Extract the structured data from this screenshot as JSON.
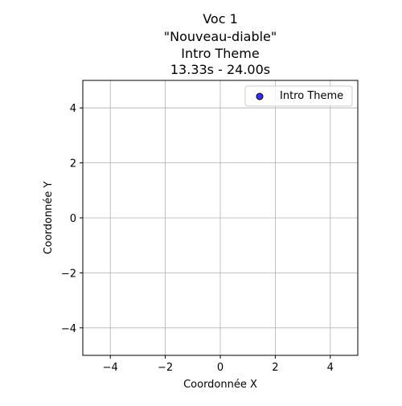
{
  "chart_data": {
    "type": "scatter",
    "title_lines": [
      "Voc 1",
      "\"Nouveau-diable\"",
      "Intro Theme",
      "13.33s - 24.00s"
    ],
    "xlabel": "Coordonnée X",
    "ylabel": "Coordonnée Y",
    "xlim": [
      -5,
      5
    ],
    "ylim": [
      -5,
      5
    ],
    "xticks": [
      -4,
      -2,
      0,
      2,
      4
    ],
    "yticks": [
      -4,
      -2,
      0,
      2,
      4
    ],
    "grid": true,
    "legend_position": "top-right",
    "series": [
      {
        "name": "Intro Theme",
        "color": "#0000ff",
        "edge_color": "#000000",
        "points": []
      }
    ]
  }
}
